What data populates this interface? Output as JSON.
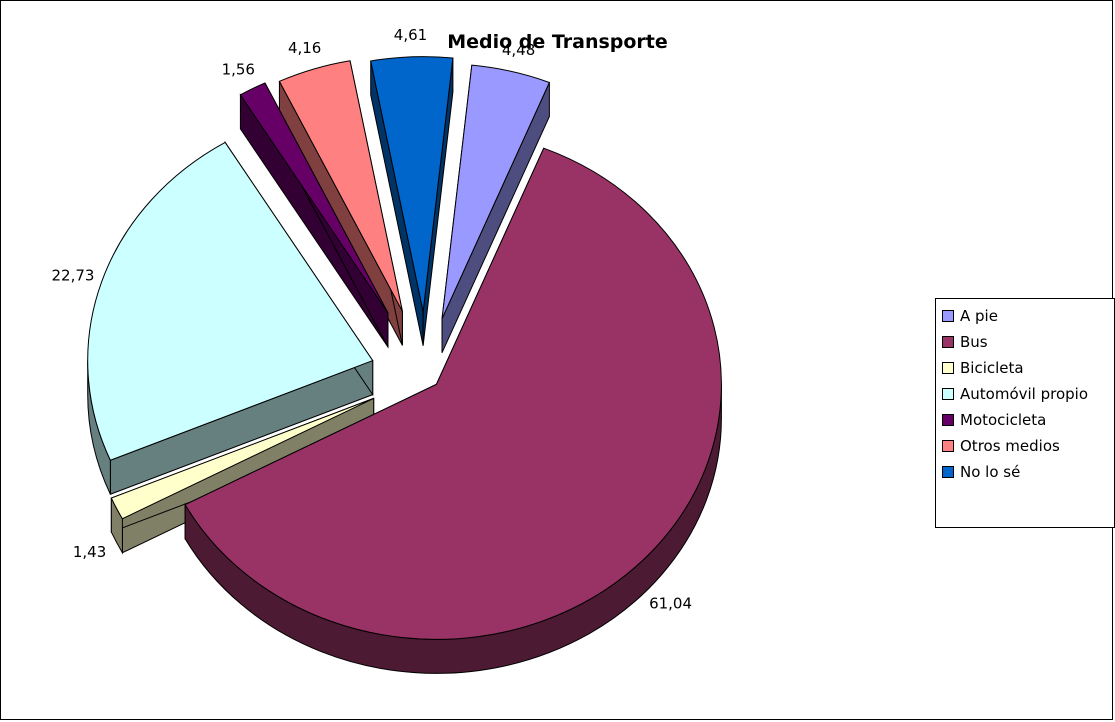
{
  "chart_data": {
    "type": "pie",
    "title": "Medio de Transporte",
    "legend_position": "right",
    "slices": [
      {
        "name": "A pie",
        "value": 4.48,
        "label": "4,48",
        "color": "#9999FF"
      },
      {
        "name": "Bus",
        "value": 61.04,
        "label": "61,04",
        "color": "#993366"
      },
      {
        "name": "Bicicleta",
        "value": 1.43,
        "label": "1,43",
        "color": "#FFFFCC"
      },
      {
        "name": "Automóvil propio",
        "value": 22.73,
        "label": "22,73",
        "color": "#CCFFFF"
      },
      {
        "name": "Motocicleta",
        "value": 1.56,
        "label": "1,56",
        "color": "#660066"
      },
      {
        "name": "Otros medios",
        "value": 4.16,
        "label": "4,16",
        "color": "#FF8080"
      },
      {
        "name": "No lo sé",
        "value": 4.61,
        "label": "4,61",
        "color": "#0066CC"
      }
    ]
  }
}
